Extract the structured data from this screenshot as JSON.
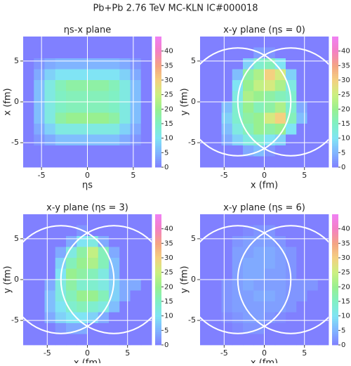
{
  "title": "Pb+Pb 2.76 TeV MC-KLN IC#000018",
  "chart_data": [
    {
      "type": "heatmap",
      "title": "ηs-x plane",
      "xlabel": "ηs",
      "ylabel": "x (fm)",
      "xlim": [
        -7,
        7
      ],
      "ylim": [
        -8,
        8
      ],
      "xticks": [
        -5,
        0,
        5
      ],
      "yticks": [
        -5,
        0,
        5
      ],
      "grid": true,
      "clim": [
        0,
        45
      ],
      "cticks": [
        0,
        5,
        10,
        15,
        20,
        25,
        30,
        35,
        40
      ],
      "colorscale": [
        [
          0,
          "#8080ff"
        ],
        [
          5,
          "#80b4ff"
        ],
        [
          10,
          "#80e4f4"
        ],
        [
          15,
          "#80f0c4"
        ],
        [
          20,
          "#98f090"
        ],
        [
          25,
          "#ccf080"
        ],
        [
          30,
          "#f4d080"
        ],
        [
          35,
          "#f4a484"
        ],
        [
          40,
          "#f480c4"
        ],
        [
          45,
          "#f080f4"
        ]
      ],
      "z": [
        [
          0,
          0,
          0,
          0,
          0,
          0,
          0,
          0,
          0,
          0,
          0,
          0
        ],
        [
          0,
          0,
          0,
          0,
          0,
          0,
          0,
          0,
          0,
          0,
          0,
          0
        ],
        [
          0,
          2,
          4,
          5,
          5,
          5,
          5,
          5,
          5,
          4,
          2,
          0
        ],
        [
          0,
          4,
          8,
          10,
          10,
          10,
          10,
          10,
          10,
          8,
          4,
          0
        ],
        [
          0,
          6,
          12,
          16,
          18,
          18,
          18,
          18,
          16,
          12,
          6,
          0
        ],
        [
          0,
          6,
          12,
          15,
          16,
          16,
          16,
          16,
          15,
          12,
          6,
          0
        ],
        [
          0,
          6,
          12,
          15,
          16,
          16,
          16,
          16,
          15,
          12,
          6,
          0
        ],
        [
          0,
          6,
          12,
          18,
          20,
          20,
          20,
          20,
          18,
          12,
          6,
          0
        ],
        [
          0,
          4,
          8,
          12,
          12,
          12,
          12,
          12,
          12,
          8,
          4,
          0
        ],
        [
          0,
          2,
          4,
          6,
          6,
          6,
          6,
          6,
          6,
          4,
          2,
          0
        ],
        [
          0,
          0,
          0,
          0,
          0,
          0,
          0,
          0,
          0,
          0,
          0,
          0
        ],
        [
          0,
          0,
          0,
          0,
          0,
          0,
          0,
          0,
          0,
          0,
          0,
          0
        ]
      ]
    },
    {
      "type": "heatmap",
      "title": "x-y plane (ηs = 0)",
      "xlabel": "x (fm)",
      "ylabel": "y (fm)",
      "xlim": [
        -8,
        8
      ],
      "ylim": [
        -8,
        8
      ],
      "xticks": [
        -5,
        0,
        5
      ],
      "yticks": [
        -5,
        0,
        5
      ],
      "grid": true,
      "clim": [
        0,
        45
      ],
      "cticks": [
        0,
        5,
        10,
        15,
        20,
        25,
        30,
        35,
        40
      ],
      "colorscale": [
        [
          0,
          "#8080ff"
        ],
        [
          5,
          "#80b4ff"
        ],
        [
          10,
          "#80e4f4"
        ],
        [
          15,
          "#80f0c4"
        ],
        [
          20,
          "#98f090"
        ],
        [
          25,
          "#ccf080"
        ],
        [
          30,
          "#f4d080"
        ],
        [
          35,
          "#f4a484"
        ],
        [
          40,
          "#f480c4"
        ],
        [
          45,
          "#f080f4"
        ]
      ],
      "z": [
        [
          0,
          0,
          0,
          0,
          0,
          0,
          0,
          0,
          0,
          0,
          0,
          0
        ],
        [
          0,
          0,
          0,
          0,
          0,
          3,
          2,
          0,
          0,
          0,
          0,
          0
        ],
        [
          0,
          0,
          0,
          0,
          8,
          14,
          16,
          10,
          0,
          0,
          0,
          0
        ],
        [
          0,
          0,
          0,
          6,
          18,
          22,
          30,
          26,
          8,
          0,
          0,
          0
        ],
        [
          0,
          0,
          0,
          10,
          20,
          24,
          26,
          22,
          12,
          0,
          0,
          0
        ],
        [
          0,
          0,
          0,
          12,
          22,
          20,
          18,
          16,
          14,
          0,
          0,
          0
        ],
        [
          0,
          0,
          6,
          14,
          20,
          16,
          18,
          22,
          14,
          4,
          0,
          0
        ],
        [
          0,
          0,
          8,
          14,
          18,
          20,
          26,
          30,
          16,
          6,
          0,
          0
        ],
        [
          0,
          0,
          6,
          12,
          16,
          20,
          18,
          20,
          10,
          0,
          0,
          0
        ],
        [
          0,
          0,
          4,
          8,
          12,
          14,
          10,
          8,
          0,
          0,
          0,
          0
        ],
        [
          0,
          0,
          0,
          0,
          4,
          6,
          2,
          0,
          0,
          0,
          0,
          0
        ],
        [
          0,
          0,
          0,
          0,
          0,
          0,
          0,
          0,
          0,
          0,
          0,
          0
        ]
      ]
    },
    {
      "type": "heatmap",
      "title": "x-y plane (ηs = 3)",
      "xlabel": "x (fm)",
      "ylabel": "y (fm)",
      "xlim": [
        -8,
        8
      ],
      "ylim": [
        -8,
        8
      ],
      "xticks": [
        -5,
        0,
        5
      ],
      "yticks": [
        -5,
        0,
        5
      ],
      "grid": true,
      "clim": [
        0,
        45
      ],
      "cticks": [
        0,
        5,
        10,
        15,
        20,
        25,
        30,
        35,
        40
      ],
      "colorscale": [
        [
          0,
          "#8080ff"
        ],
        [
          5,
          "#80b4ff"
        ],
        [
          10,
          "#80e4f4"
        ],
        [
          15,
          "#80f0c4"
        ],
        [
          20,
          "#98f090"
        ],
        [
          25,
          "#ccf080"
        ],
        [
          30,
          "#f4d080"
        ],
        [
          35,
          "#f4a484"
        ],
        [
          40,
          "#f480c4"
        ],
        [
          45,
          "#f080f4"
        ]
      ],
      "z": [
        [
          0,
          0,
          0,
          0,
          0,
          0,
          0,
          0,
          0,
          0,
          0,
          0
        ],
        [
          0,
          0,
          0,
          0,
          0,
          2,
          0,
          0,
          0,
          0,
          0,
          0
        ],
        [
          0,
          0,
          0,
          0,
          4,
          10,
          12,
          4,
          0,
          0,
          0,
          0
        ],
        [
          0,
          0,
          0,
          4,
          12,
          18,
          24,
          16,
          4,
          0,
          0,
          0
        ],
        [
          0,
          0,
          0,
          8,
          16,
          20,
          22,
          16,
          6,
          0,
          0,
          0
        ],
        [
          0,
          0,
          0,
          10,
          20,
          18,
          16,
          12,
          6,
          0,
          0,
          0
        ],
        [
          0,
          0,
          4,
          12,
          18,
          14,
          14,
          12,
          8,
          4,
          4,
          0
        ],
        [
          0,
          0,
          6,
          12,
          16,
          20,
          20,
          16,
          8,
          4,
          0,
          0
        ],
        [
          0,
          0,
          6,
          10,
          14,
          16,
          14,
          12,
          6,
          0,
          0,
          0
        ],
        [
          0,
          0,
          4,
          8,
          10,
          10,
          8,
          4,
          0,
          0,
          0,
          0
        ],
        [
          0,
          0,
          0,
          2,
          4,
          4,
          0,
          0,
          0,
          0,
          0,
          0
        ],
        [
          0,
          0,
          0,
          0,
          0,
          0,
          0,
          0,
          0,
          0,
          0,
          0
        ]
      ]
    },
    {
      "type": "heatmap",
      "title": "x-y plane (ηs = 6)",
      "xlabel": "x (fm)",
      "ylabel": "y (fm)",
      "xlim": [
        -8,
        8
      ],
      "ylim": [
        -8,
        8
      ],
      "xticks": [
        -5,
        0,
        5
      ],
      "yticks": [
        -5,
        0,
        5
      ],
      "grid": true,
      "clim": [
        0,
        45
      ],
      "cticks": [
        0,
        5,
        10,
        15,
        20,
        25,
        30,
        35,
        40
      ],
      "colorscale": [
        [
          0,
          "#8080ff"
        ],
        [
          5,
          "#80b4ff"
        ],
        [
          10,
          "#80e4f4"
        ],
        [
          15,
          "#80f0c4"
        ],
        [
          20,
          "#98f090"
        ],
        [
          25,
          "#ccf080"
        ],
        [
          30,
          "#f4d080"
        ],
        [
          35,
          "#f4a484"
        ],
        [
          40,
          "#f480c4"
        ],
        [
          45,
          "#f080f4"
        ]
      ],
      "z": [
        [
          0,
          0,
          0,
          0,
          0,
          0,
          0,
          0,
          0,
          0,
          0,
          0
        ],
        [
          0,
          0,
          0,
          0,
          1,
          2,
          2,
          0,
          0,
          0,
          0,
          0
        ],
        [
          0,
          0,
          0,
          2,
          3,
          3,
          3,
          2,
          0,
          0,
          0,
          0
        ],
        [
          0,
          0,
          0,
          3,
          3,
          4,
          4,
          3,
          2,
          0,
          0,
          0
        ],
        [
          0,
          0,
          0,
          3,
          4,
          4,
          4,
          3,
          2,
          0,
          0,
          0
        ],
        [
          0,
          0,
          0,
          3,
          4,
          4,
          3,
          3,
          2,
          0,
          0,
          0
        ],
        [
          0,
          0,
          2,
          3,
          4,
          3,
          3,
          3,
          2,
          2,
          2,
          0
        ],
        [
          0,
          0,
          2,
          3,
          3,
          4,
          4,
          3,
          2,
          2,
          0,
          0
        ],
        [
          0,
          0,
          2,
          3,
          3,
          3,
          3,
          3,
          2,
          0,
          0,
          0
        ],
        [
          0,
          0,
          1,
          2,
          3,
          3,
          2,
          1,
          0,
          0,
          0,
          0
        ],
        [
          0,
          0,
          0,
          1,
          2,
          2,
          0,
          0,
          0,
          0,
          0,
          0
        ],
        [
          0,
          0,
          0,
          0,
          0,
          0,
          0,
          0,
          0,
          0,
          0,
          0
        ]
      ]
    }
  ]
}
